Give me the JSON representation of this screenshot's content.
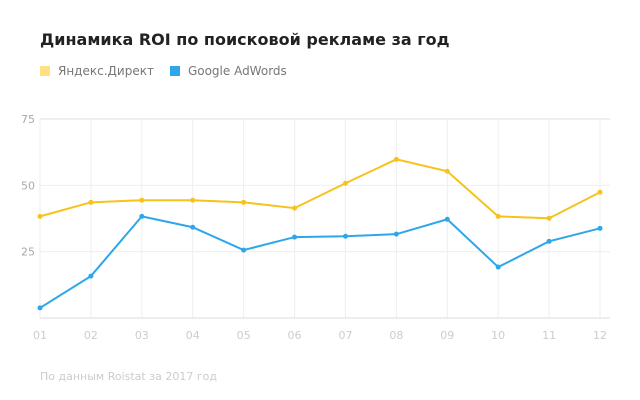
{
  "chart_data": {
    "type": "line",
    "title": "Динамика ROI по поисковой рекламе за год",
    "categories": [
      "01",
      "02",
      "03",
      "04",
      "05",
      "06",
      "07",
      "08",
      "09",
      "10",
      "11",
      "12"
    ],
    "series": [
      {
        "name": "Яндекс.Директ",
        "color": "#f7c21c",
        "legend_color": "#ffe082",
        "values": [
          38.3,
          43.6,
          44.4,
          44.4,
          43.6,
          41.4,
          50.8,
          59.8,
          55.3,
          38.3,
          37.6,
          47.4
        ]
      },
      {
        "name": "Google AdWords",
        "color": "#2ea6ec",
        "legend_color": "#2ea6ec",
        "values": [
          3.8,
          15.8,
          38.3,
          34.2,
          25.6,
          30.5,
          30.8,
          31.6,
          37.2,
          19.2,
          28.9,
          33.8
        ]
      }
    ],
    "yticks": [
      25,
      50,
      75
    ],
    "ylim": [
      0,
      75
    ],
    "grid": true,
    "legend_position": "top-left",
    "footnote": "По данным Roistat за 2017 год"
  }
}
